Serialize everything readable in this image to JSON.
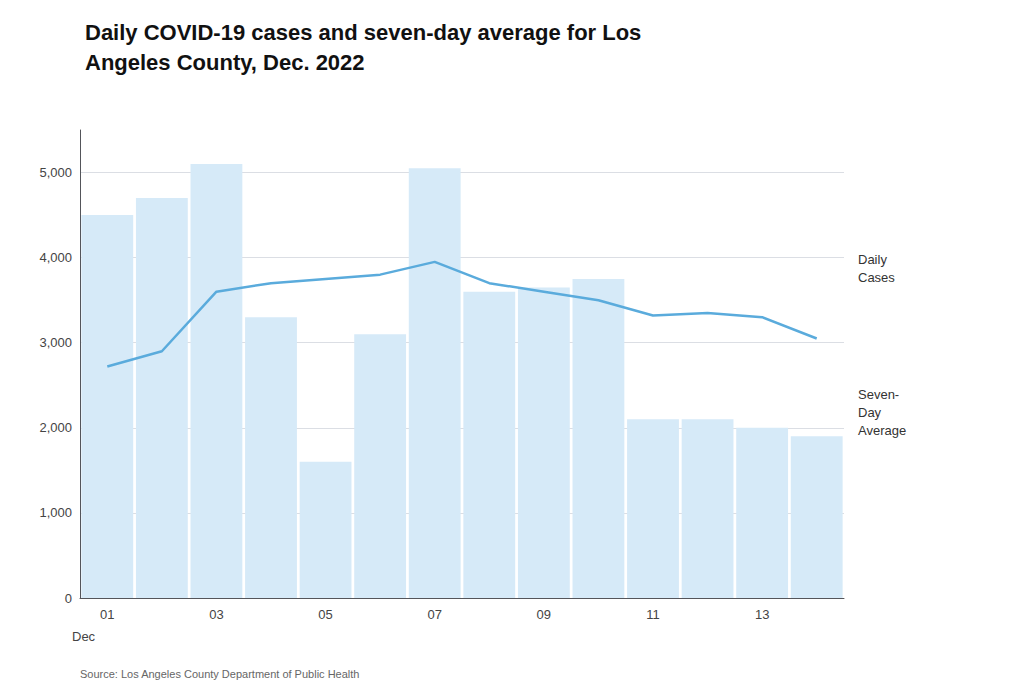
{
  "chart_data": {
    "type": "bar",
    "title": "Daily COVID-19 cases and seven-day average for Los\nAngeles County, Dec. 2022",
    "source": "Source: Los Angeles County Department of Public Health",
    "xlabel": "Dec",
    "categories": [
      "01",
      null,
      "03",
      null,
      "05",
      null,
      "07",
      null,
      "09",
      null,
      "11",
      null,
      "13",
      null
    ],
    "series": [
      {
        "name": "Daily\nCases",
        "type": "bar",
        "color": "#d6eaf8",
        "values": [
          4500,
          4700,
          5100,
          3300,
          1600,
          3100,
          5050,
          3600,
          3650,
          3750,
          2100,
          2100,
          2000,
          1900
        ]
      },
      {
        "name": "Seven-\nDay\nAverage",
        "type": "line",
        "color": "#5aabdc",
        "values": [
          2720,
          2900,
          3600,
          3700,
          3750,
          3800,
          3950,
          3700,
          3600,
          3500,
          3320,
          3350,
          3300,
          3050
        ]
      }
    ],
    "ylim": [
      0,
      5500
    ],
    "yticks": [
      0,
      {
        "value": 1000,
        "label": "1,000"
      },
      {
        "value": 2000,
        "label": "2,000"
      },
      {
        "value": 3000,
        "label": "3,000"
      },
      {
        "value": 4000,
        "label": "4,000"
      },
      {
        "value": 5000,
        "label": "5,000"
      }
    ],
    "grid": true
  }
}
